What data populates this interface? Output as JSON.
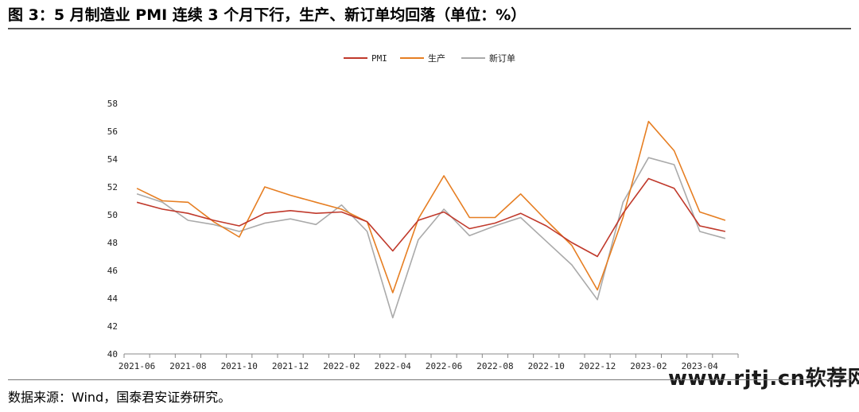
{
  "title": "图 3：5 月制造业 PMI 连续 3 个月下行，生产、新订单均回落（单位：%）",
  "source": "数据来源：Wind，国泰君安证券研究。",
  "watermark": "www.rjtj.cn软荐网",
  "colors": {
    "PMI": "#c0392b",
    "生产": "#e67e22",
    "新订单": "#aaaaaa",
    "axis": "#888888"
  },
  "chart_data": {
    "type": "line",
    "xlabel": "",
    "ylabel": "",
    "ylim": [
      40,
      58
    ],
    "yticks": [
      40,
      42,
      44,
      46,
      48,
      50,
      52,
      54,
      56,
      58
    ],
    "x": [
      "2021-06",
      "2021-07",
      "2021-08",
      "2021-09",
      "2021-10",
      "2021-11",
      "2021-12",
      "2022-01",
      "2022-02",
      "2022-03",
      "2022-04",
      "2022-05",
      "2022-06",
      "2022-07",
      "2022-08",
      "2022-09",
      "2022-10",
      "2022-11",
      "2022-12",
      "2023-01",
      "2023-02",
      "2023-03",
      "2023-04",
      "2023-05"
    ],
    "xtick_labels": [
      "2021-06",
      "2021-08",
      "2021-10",
      "2021-12",
      "2022-02",
      "2022-04",
      "2022-06",
      "2022-08",
      "2022-10",
      "2022-12",
      "2023-02",
      "2023-04"
    ],
    "legend_position": "top-center",
    "grid": false,
    "series": [
      {
        "name": "PMI",
        "values": [
          50.9,
          50.4,
          50.1,
          49.6,
          49.2,
          50.1,
          50.3,
          50.1,
          50.2,
          49.5,
          47.4,
          49.6,
          50.2,
          49.0,
          49.4,
          50.1,
          49.2,
          48.0,
          47.0,
          50.1,
          52.6,
          51.9,
          49.2,
          48.8
        ]
      },
      {
        "name": "生产",
        "values": [
          51.9,
          51.0,
          50.9,
          49.5,
          48.4,
          52.0,
          51.4,
          50.9,
          50.4,
          49.5,
          44.4,
          49.7,
          52.8,
          49.8,
          49.8,
          51.5,
          49.6,
          47.8,
          44.6,
          49.8,
          56.7,
          54.6,
          50.2,
          49.6
        ]
      },
      {
        "name": "新订单",
        "values": [
          51.5,
          50.9,
          49.6,
          49.3,
          48.8,
          49.4,
          49.7,
          49.3,
          50.7,
          48.8,
          42.6,
          48.2,
          50.4,
          48.5,
          49.2,
          49.8,
          48.1,
          46.4,
          43.9,
          50.9,
          54.1,
          53.6,
          48.8,
          48.3
        ]
      }
    ]
  }
}
